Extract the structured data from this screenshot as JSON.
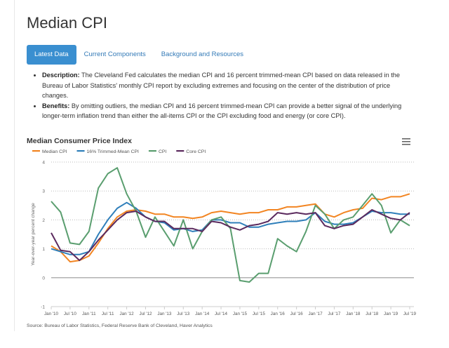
{
  "page_title": "Median CPI",
  "tabs": [
    {
      "label": "Latest Data",
      "active": true
    },
    {
      "label": "Current Components"
    },
    {
      "label": "Background and Resources"
    }
  ],
  "bullets": [
    {
      "term": "Description:",
      "text": " The Cleveland Fed calculates the median CPI and 16 percent trimmed-mean CPI based on data released in the Bureau of Labor Statistics' monthly CPI report by excluding extremes and focusing on the center of the distribution of price changes."
    },
    {
      "term": "Benefits:",
      "text": " By omitting outliers, the median CPI and 16 percent trimmed-mean CPI can provide a better signal of the underlying longer-term inflation trend than either the all-items CPI or the CPI excluding food and energy (or core CPI)."
    }
  ],
  "menu_icon": "hamburger-menu-icon",
  "source": "Source: Bureau of Labor Statistics, Federal Reserve Bank of Cleveland, Haver Analytics",
  "chart_data": {
    "type": "line",
    "title": "Median Consumer Price Index",
    "ylabel": "Year-over-year percent change",
    "ylim": [
      -1,
      4
    ],
    "yticks": [
      4,
      3,
      2,
      1,
      0,
      -1
    ],
    "grid": true,
    "legend_position": "top-left",
    "xtick_labels": [
      "Jan '10",
      "Jul '10",
      "Jan '11",
      "Jul '11",
      "Jan '12",
      "Jul '12",
      "Jan '13",
      "Jul '13",
      "Jan '14",
      "Jul '14",
      "Jan '15",
      "Jul '15",
      "Jan '16",
      "Jul '16",
      "Jan '17",
      "Jul '17",
      "Jan '18",
      "Jul '18",
      "Jan '19",
      "Jul '19"
    ],
    "x": [
      "2010-01",
      "2010-04",
      "2010-07",
      "2010-10",
      "2011-01",
      "2011-04",
      "2011-07",
      "2011-10",
      "2012-01",
      "2012-04",
      "2012-07",
      "2012-10",
      "2013-01",
      "2013-04",
      "2013-07",
      "2013-10",
      "2014-01",
      "2014-04",
      "2014-07",
      "2014-10",
      "2015-01",
      "2015-04",
      "2015-07",
      "2015-10",
      "2016-01",
      "2016-04",
      "2016-07",
      "2016-10",
      "2017-01",
      "2017-04",
      "2017-07",
      "2017-10",
      "2018-01",
      "2018-04",
      "2018-07",
      "2018-10",
      "2019-01",
      "2019-04",
      "2019-07"
    ],
    "series": [
      {
        "name": "Median CPI",
        "color": "#f28522",
        "values": [
          1.1,
          0.9,
          0.55,
          0.6,
          0.75,
          1.2,
          1.7,
          2.1,
          2.3,
          2.35,
          2.3,
          2.2,
          2.2,
          2.1,
          2.1,
          2.05,
          2.1,
          2.25,
          2.3,
          2.25,
          2.2,
          2.25,
          2.25,
          2.35,
          2.35,
          2.45,
          2.45,
          2.5,
          2.55,
          2.2,
          2.1,
          2.25,
          2.35,
          2.4,
          2.75,
          2.7,
          2.8,
          2.8,
          2.9
        ]
      },
      {
        "name": "16% Trimmed-Mean CPI",
        "color": "#2f7fba",
        "values": [
          1.0,
          0.9,
          0.8,
          0.8,
          0.9,
          1.5,
          2.0,
          2.4,
          2.6,
          2.4,
          2.1,
          1.95,
          1.9,
          1.65,
          1.7,
          1.6,
          1.65,
          2.0,
          2.0,
          1.9,
          1.9,
          1.75,
          1.75,
          1.85,
          1.9,
          1.95,
          1.95,
          2.0,
          2.25,
          1.95,
          1.85,
          1.85,
          1.9,
          2.1,
          2.3,
          2.25,
          2.25,
          2.2,
          2.2
        ]
      },
      {
        "name": "CPI",
        "color": "#5a9e6f",
        "values": [
          2.64,
          2.27,
          1.2,
          1.15,
          1.6,
          3.1,
          3.6,
          3.8,
          2.9,
          2.3,
          1.4,
          2.1,
          1.6,
          1.1,
          2.0,
          1.0,
          1.6,
          2.0,
          2.1,
          1.7,
          -0.1,
          -0.15,
          0.15,
          0.15,
          1.35,
          1.1,
          0.9,
          1.6,
          2.5,
          2.2,
          1.7,
          2.0,
          2.1,
          2.5,
          2.9,
          2.5,
          1.55,
          2.0,
          1.8
        ]
      },
      {
        "name": "Core CPI",
        "color": "#5b2a5e",
        "values": [
          1.55,
          0.95,
          0.9,
          0.6,
          0.9,
          1.3,
          1.65,
          2.0,
          2.25,
          2.3,
          2.1,
          1.95,
          1.95,
          1.7,
          1.7,
          1.7,
          1.6,
          1.95,
          1.9,
          1.75,
          1.65,
          1.8,
          1.85,
          1.95,
          2.25,
          2.2,
          2.25,
          2.2,
          2.25,
          1.8,
          1.7,
          1.8,
          1.85,
          2.1,
          2.35,
          2.2,
          2.05,
          2.0,
          2.25
        ]
      }
    ]
  }
}
